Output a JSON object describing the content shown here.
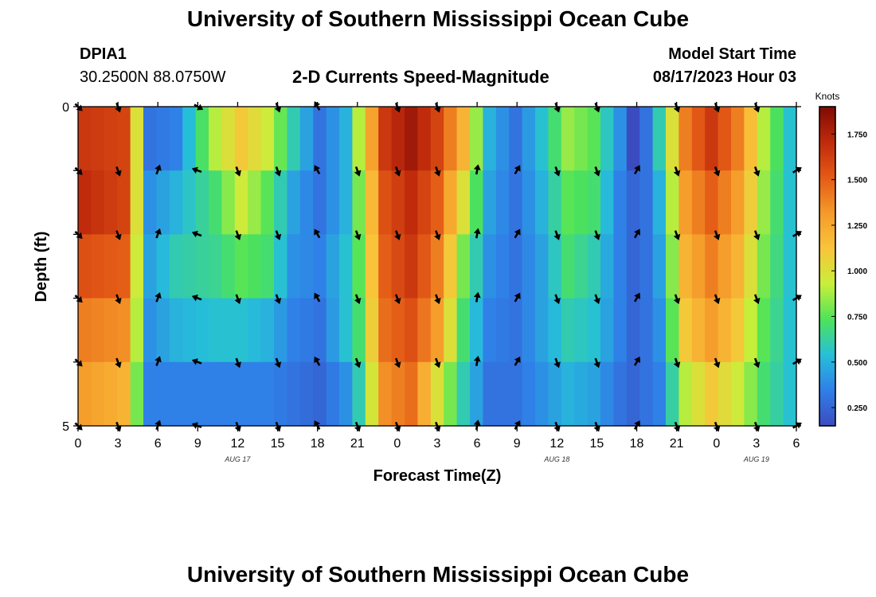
{
  "header": {
    "title": "University of Southern Mississippi Ocean Cube",
    "station_id": "DPIA1",
    "station_coords": "30.2500N  88.0750W",
    "product_title": "2-D Currents Speed-Magnitude",
    "model_label": "Model Start Time",
    "model_time": "08/17/2023 Hour 03"
  },
  "footer": {
    "title": "University of Southern Mississippi Ocean Cube"
  },
  "chart_data": {
    "type": "heatmap",
    "title": "2-D Currents Speed-Magnitude",
    "xlabel": "Forecast Time(Z)",
    "ylabel": "Depth (ft)",
    "x_tick_labels": [
      "0",
      "3",
      "6",
      "9",
      "12",
      "15",
      "18",
      "21",
      "0",
      "3",
      "6",
      "9",
      "12",
      "15",
      "18",
      "21",
      "0",
      "3",
      "6"
    ],
    "day_labels": [
      {
        "label": "AUG 17",
        "tick_index": 4
      },
      {
        "label": "AUG 18",
        "tick_index": 12
      },
      {
        "label": "AUG 19",
        "tick_index": 17
      }
    ],
    "y_tick_labels": [
      {
        "value": 0,
        "label": "0"
      },
      {
        "value": 5,
        "label": "5"
      }
    ],
    "ylim": [
      0,
      5
    ],
    "hours": 55,
    "depth_levels": 5,
    "colorbar": {
      "label": "Knots",
      "range": [
        0.15,
        1.9
      ],
      "ticks": [
        "0.250",
        "0.500",
        "0.750",
        "1.000",
        "1.250",
        "1.500",
        "1.750"
      ],
      "tick_values": [
        0.25,
        0.5,
        0.75,
        1.0,
        1.25,
        1.5,
        1.75
      ],
      "colors": [
        "#3b4cc0",
        "#2f7fe8",
        "#26bfd9",
        "#4de35a",
        "#c8ef3a",
        "#f9c43a",
        "#f59a2a",
        "#e45a16",
        "#bf2a0c",
        "#7e0a04"
      ]
    },
    "speed_keyframes_knots": [
      [
        0,
        1.65,
        1.7,
        1.55,
        1.4,
        1.3
      ],
      [
        3,
        1.6,
        1.6,
        1.5,
        1.35,
        1.2
      ],
      [
        4,
        1.0,
        1.0,
        0.95,
        0.9,
        0.8
      ],
      [
        5,
        0.3,
        0.4,
        0.45,
        0.4,
        0.35
      ],
      [
        7,
        0.35,
        0.5,
        0.6,
        0.5,
        0.35
      ],
      [
        10,
        0.9,
        0.7,
        0.65,
        0.55,
        0.35
      ],
      [
        12,
        1.1,
        0.95,
        0.75,
        0.55,
        0.35
      ],
      [
        14,
        0.95,
        0.75,
        0.7,
        0.5,
        0.35
      ],
      [
        16,
        0.6,
        0.45,
        0.4,
        0.35,
        0.3
      ],
      [
        18,
        0.3,
        0.3,
        0.35,
        0.3,
        0.25
      ],
      [
        20,
        0.5,
        0.5,
        0.55,
        0.55,
        0.4
      ],
      [
        21,
        0.9,
        0.8,
        0.75,
        0.7,
        0.6
      ],
      [
        23,
        1.65,
        1.55,
        1.5,
        1.45,
        1.35
      ],
      [
        25,
        1.8,
        1.7,
        1.65,
        1.55,
        1.45
      ],
      [
        27,
        1.6,
        1.5,
        1.4,
        1.3,
        1.0
      ],
      [
        29,
        1.2,
        1.0,
        0.8,
        0.7,
        0.6
      ],
      [
        31,
        0.5,
        0.45,
        0.4,
        0.35,
        0.3
      ],
      [
        33,
        0.3,
        0.3,
        0.3,
        0.3,
        0.3
      ],
      [
        35,
        0.55,
        0.5,
        0.45,
        0.45,
        0.4
      ],
      [
        37,
        0.85,
        0.75,
        0.7,
        0.6,
        0.5
      ],
      [
        39,
        0.75,
        0.7,
        0.6,
        0.55,
        0.45
      ],
      [
        41,
        0.4,
        0.35,
        0.35,
        0.35,
        0.3
      ],
      [
        42,
        0.15,
        0.25,
        0.25,
        0.25,
        0.25
      ],
      [
        43,
        0.3,
        0.3,
        0.3,
        0.3,
        0.3
      ],
      [
        44,
        0.6,
        0.5,
        0.45,
        0.4,
        0.35
      ],
      [
        46,
        1.4,
        1.3,
        1.2,
        1.1,
        0.9
      ],
      [
        48,
        1.65,
        1.5,
        1.4,
        1.3,
        1.1
      ],
      [
        50,
        1.4,
        1.3,
        1.2,
        1.1,
        0.95
      ],
      [
        52,
        0.9,
        0.85,
        0.8,
        0.75,
        0.7
      ],
      [
        54,
        0.55,
        0.55,
        0.55,
        0.55,
        0.55
      ]
    ],
    "arrow_hours": [
      0,
      3,
      6,
      9,
      12,
      15,
      18,
      21,
      24,
      27,
      30,
      33,
      36,
      39,
      42,
      45,
      48,
      51,
      54
    ],
    "arrow_rows": [
      0,
      1,
      2,
      3,
      4,
      5
    ],
    "arrow_direction_deg_by_hour": [
      135,
      160,
      20,
      290,
      160,
      160,
      330,
      160,
      160,
      160,
      10,
      30,
      160,
      160,
      30,
      160,
      160,
      160,
      60
    ],
    "arrow_direction_deg_row0": [
      135,
      160,
      null,
      120,
      null,
      160,
      330,
      null,
      160,
      160,
      null,
      null,
      160,
      160,
      null,
      160,
      160,
      160,
      null
    ]
  }
}
